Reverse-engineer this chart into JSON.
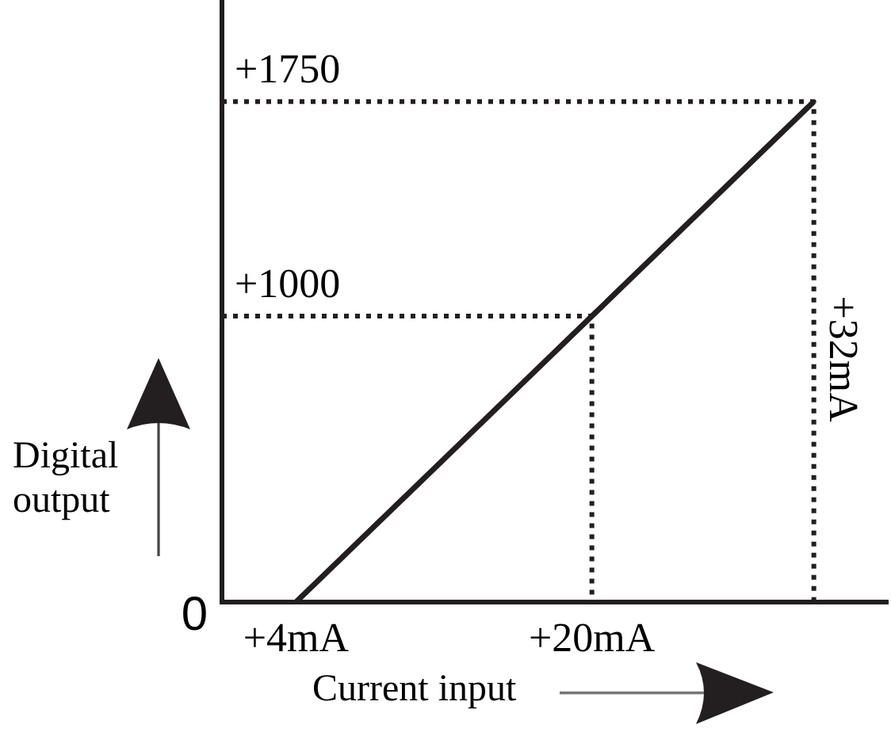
{
  "chart_data": {
    "type": "line",
    "xlabel": "Current input",
    "ylabel": "Digital output",
    "xlim": [
      0,
      36
    ],
    "ylim": [
      0,
      2100
    ],
    "xticks": [
      {
        "value": 4,
        "label": "+4mA"
      },
      {
        "value": 20,
        "label": "+20mA"
      }
    ],
    "yticks": [
      {
        "value": 1000,
        "label": "+1000"
      },
      {
        "value": 1750,
        "label": "+1750"
      }
    ],
    "annotations": [
      "0",
      {
        "text": "+32mA",
        "x": 32,
        "y": 850
      }
    ],
    "grid": false,
    "legend": false,
    "marker": "none",
    "series": [
      {
        "color": "#231f20",
        "x": [
          4,
          20,
          32
        ],
        "values": [
          0,
          1000,
          1750
        ],
        "line_style": "solid"
      },
      {
        "color": "#231f20",
        "x": [
          0,
          20,
          20
        ],
        "values": [
          1000,
          1000,
          0
        ],
        "line_style": "dotted"
      },
      {
        "color": "#231f20",
        "x": [
          0,
          32,
          32
        ],
        "values": [
          1750,
          1750,
          0
        ],
        "line_style": "dotted"
      }
    ]
  }
}
